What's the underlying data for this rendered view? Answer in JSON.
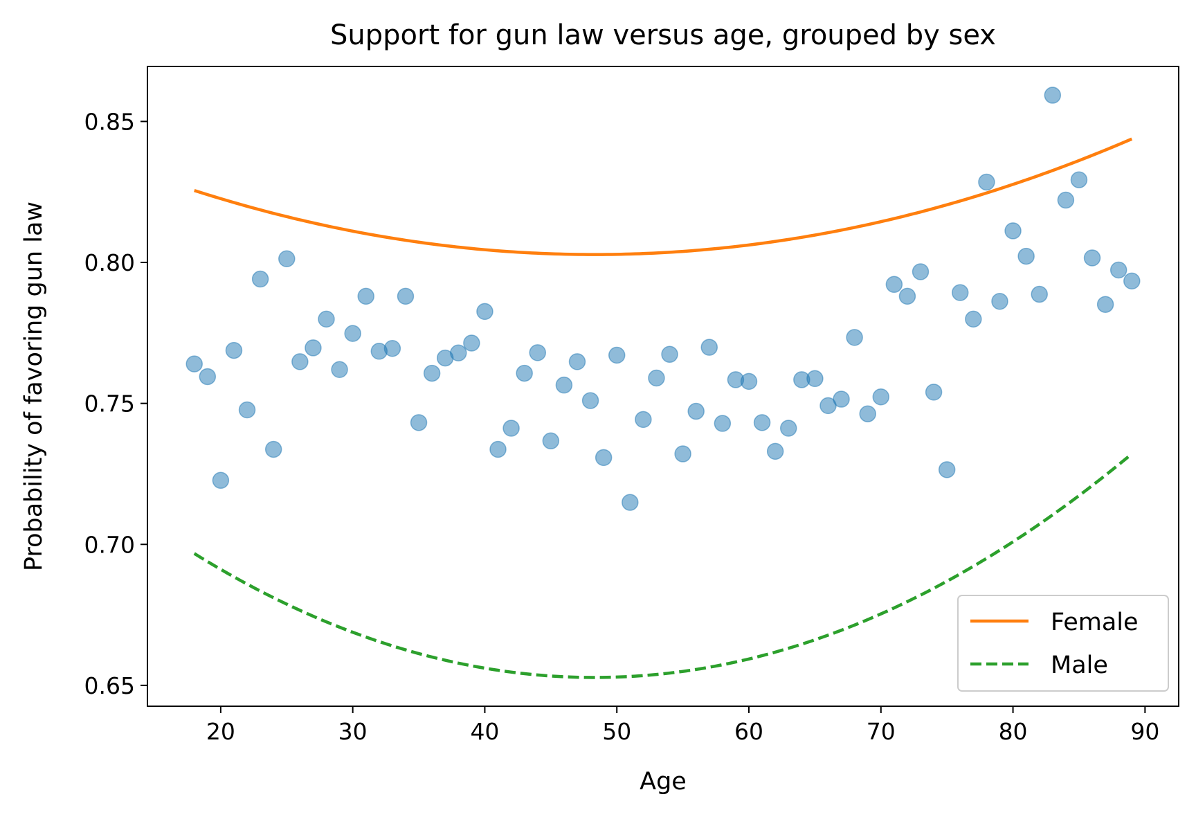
{
  "chart_data": {
    "type": "scatter",
    "title": "Support for gun law versus age, grouped by sex",
    "xlabel": "Age",
    "ylabel": "Probability of favoring gun law",
    "xlim": [
      14.45,
      92.55
    ],
    "ylim": [
      0.6426,
      0.8695
    ],
    "xticks": [
      20,
      30,
      40,
      50,
      60,
      70,
      80,
      90
    ],
    "xtick_labels": [
      "20",
      "30",
      "40",
      "50",
      "60",
      "70",
      "80",
      "90"
    ],
    "yticks": [
      0.65,
      0.7,
      0.75,
      0.8,
      0.85
    ],
    "ytick_labels": [
      "0.65",
      "0.70",
      "0.75",
      "0.80",
      "0.85"
    ],
    "grid": false,
    "legend_position": "lower-right",
    "series": [
      {
        "kind": "scatter",
        "color": "#1f77b4",
        "opacity": 0.5,
        "x": [
          18,
          19,
          20,
          21,
          22,
          23,
          24,
          25,
          26,
          27,
          28,
          29,
          30,
          31,
          32,
          33,
          34,
          35,
          36,
          37,
          38,
          39,
          40,
          41,
          42,
          43,
          44,
          45,
          46,
          47,
          48,
          49,
          50,
          51,
          52,
          53,
          54,
          55,
          56,
          57,
          58,
          59,
          60,
          61,
          62,
          63,
          64,
          65,
          66,
          67,
          68,
          69,
          70,
          71,
          72,
          73,
          74,
          75,
          76,
          77,
          78,
          79,
          80,
          81,
          82,
          83,
          84,
          85,
          86,
          87,
          88,
          89
        ],
        "y": [
          0.764,
          0.7595,
          0.7227,
          0.7688,
          0.7477,
          0.7941,
          0.7337,
          0.8013,
          0.7648,
          0.7697,
          0.7799,
          0.762,
          0.7748,
          0.788,
          0.7685,
          0.7695,
          0.788,
          0.7432,
          0.7607,
          0.7661,
          0.7679,
          0.7714,
          0.7826,
          0.7337,
          0.7412,
          0.7607,
          0.768,
          0.7367,
          0.7565,
          0.7648,
          0.751,
          0.7308,
          0.7671,
          0.7149,
          0.7443,
          0.759,
          0.7674,
          0.7321,
          0.7472,
          0.7699,
          0.7429,
          0.7584,
          0.7578,
          0.7432,
          0.733,
          0.7412,
          0.7584,
          0.7588,
          0.7492,
          0.7515,
          0.7734,
          0.7463,
          0.7523,
          0.7922,
          0.788,
          0.7967,
          0.754,
          0.7265,
          0.7893,
          0.7799,
          0.8285,
          0.7862,
          0.8112,
          0.8022,
          0.7887,
          0.8593,
          0.8221,
          0.8293,
          0.8016,
          0.7851,
          0.7973,
          0.7934
        ]
      },
      {
        "name": "Female",
        "kind": "line",
        "style": "solid",
        "color": "#ff7f0e",
        "curve": {
          "a": 2.475e-05,
          "h": 48.3,
          "k": 0.8028
        },
        "x_start": 18,
        "x_end": 89
      },
      {
        "name": "Male",
        "kind": "line",
        "style": "dashed",
        "color": "#2ca02c",
        "curve": {
          "a": 4.788e-05,
          "h": 48.3,
          "k": 0.6528
        },
        "x_start": 18,
        "x_end": 89
      }
    ]
  }
}
